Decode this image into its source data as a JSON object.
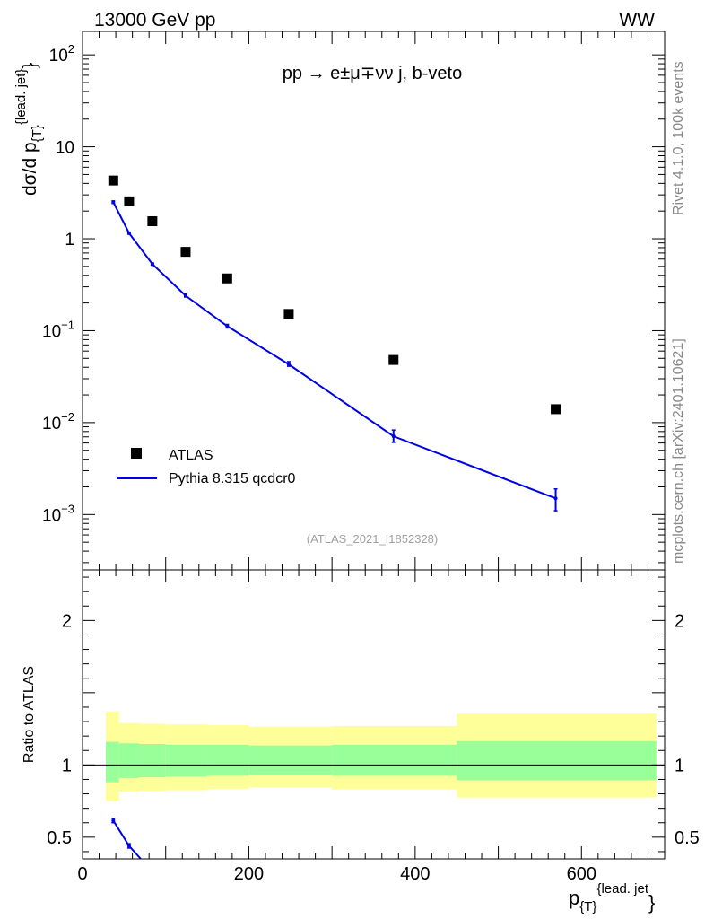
{
  "header": {
    "energy_label": "13000 GeV pp",
    "process_tag": "WW"
  },
  "side_text": {
    "rivet": "Rivet 4.1.0,  100k events",
    "mcplots": "mcplots.cern.ch [arXiv:2401.10621]"
  },
  "chart_data": [
    {
      "type": "scatter",
      "panel": "main",
      "title": "pp  →  e±μ∓νν j, b-veto",
      "analysis_label": "(ATLAS_2021_I1852328)",
      "ylabel": "dσ/d p",
      "ylabel_sub": "{T}",
      "ylabel_sup": "{lead. jet}",
      "ylabel_close": "}",
      "yscale": "log",
      "xlim": [
        0,
        700
      ],
      "ylim": [
        0.00025,
        180
      ],
      "ytick_labels": [
        {
          "value": 100,
          "base": "10",
          "exp": "2"
        },
        {
          "value": 10,
          "base": "10",
          "exp": ""
        },
        {
          "value": 1,
          "base": "1",
          "exp": ""
        },
        {
          "value": 0.1,
          "base": "10",
          "exp": "−1"
        },
        {
          "value": 0.01,
          "base": "10",
          "exp": "−2"
        },
        {
          "value": 0.001,
          "base": "10",
          "exp": "−3"
        }
      ],
      "legend": {
        "position": "lower-left",
        "entries": [
          {
            "label": "ATLAS",
            "marker": "square",
            "color": "#000000"
          },
          {
            "label": "Pythia 8.315 qcdcr0",
            "marker": "line",
            "color": "#0000e6"
          }
        ]
      },
      "series": [
        {
          "name": "ATLAS",
          "color": "#000000",
          "x": [
            37,
            56,
            84,
            124,
            174,
            248,
            374,
            569
          ],
          "y": [
            4.3,
            2.55,
            1.55,
            0.72,
            0.37,
            0.152,
            0.048,
            0.014
          ]
        },
        {
          "name": "Pythia 8.315 qcdcr0",
          "color": "#0000e6",
          "x": [
            37,
            56,
            84,
            124,
            174,
            248,
            374,
            569
          ],
          "y": [
            2.5,
            1.15,
            0.53,
            0.24,
            0.112,
            0.043,
            0.0071,
            0.0015
          ],
          "yerr_low": [
            2.42,
            1.12,
            0.515,
            0.232,
            0.107,
            0.041,
            0.0061,
            0.0011
          ],
          "yerr_high": [
            2.58,
            1.18,
            0.545,
            0.25,
            0.117,
            0.046,
            0.0083,
            0.0019
          ]
        }
      ]
    },
    {
      "type": "line",
      "panel": "ratio",
      "ylabel": "Ratio to ATLAS",
      "xlabel": "p",
      "xlabel_sub": "{T}",
      "xlabel_sup": "{lead. jet",
      "xlabel_close": "}",
      "xlim": [
        0,
        700
      ],
      "ylim": [
        0.35,
        2.35
      ],
      "xtick_labels": [
        "0",
        "200",
        "400",
        "600"
      ],
      "ytick_labels": [
        "2",
        "1",
        "0.5"
      ],
      "reference_line": 1,
      "uncertainty_bands": {
        "bins": [
          [
            28,
            44
          ],
          [
            44,
            68
          ],
          [
            68,
            100
          ],
          [
            100,
            150
          ],
          [
            150,
            200
          ],
          [
            200,
            300
          ],
          [
            300,
            450
          ],
          [
            450,
            690
          ]
        ],
        "inner_color": "#99ff99",
        "outer_color": "#ffff99",
        "inner_low": [
          0.88,
          0.91,
          0.915,
          0.92,
          0.925,
          0.93,
          0.925,
          0.895
        ],
        "inner_high": [
          1.16,
          1.15,
          1.145,
          1.14,
          1.14,
          1.135,
          1.14,
          1.165
        ],
        "outer_low": [
          0.75,
          0.815,
          0.82,
          0.825,
          0.835,
          0.845,
          0.83,
          0.775
        ],
        "outer_high": [
          1.37,
          1.29,
          1.285,
          1.28,
          1.275,
          1.265,
          1.27,
          1.355
        ]
      },
      "series": [
        {
          "name": "Pythia 8.315 qcdcr0 / ATLAS",
          "color": "#0000e6",
          "x": [
            37,
            56,
            70
          ],
          "y": [
            0.615,
            0.44,
            0.33
          ],
          "yerr_low": [
            0.6,
            0.425,
            null
          ],
          "yerr_high": [
            0.63,
            0.455,
            null
          ]
        }
      ]
    }
  ]
}
